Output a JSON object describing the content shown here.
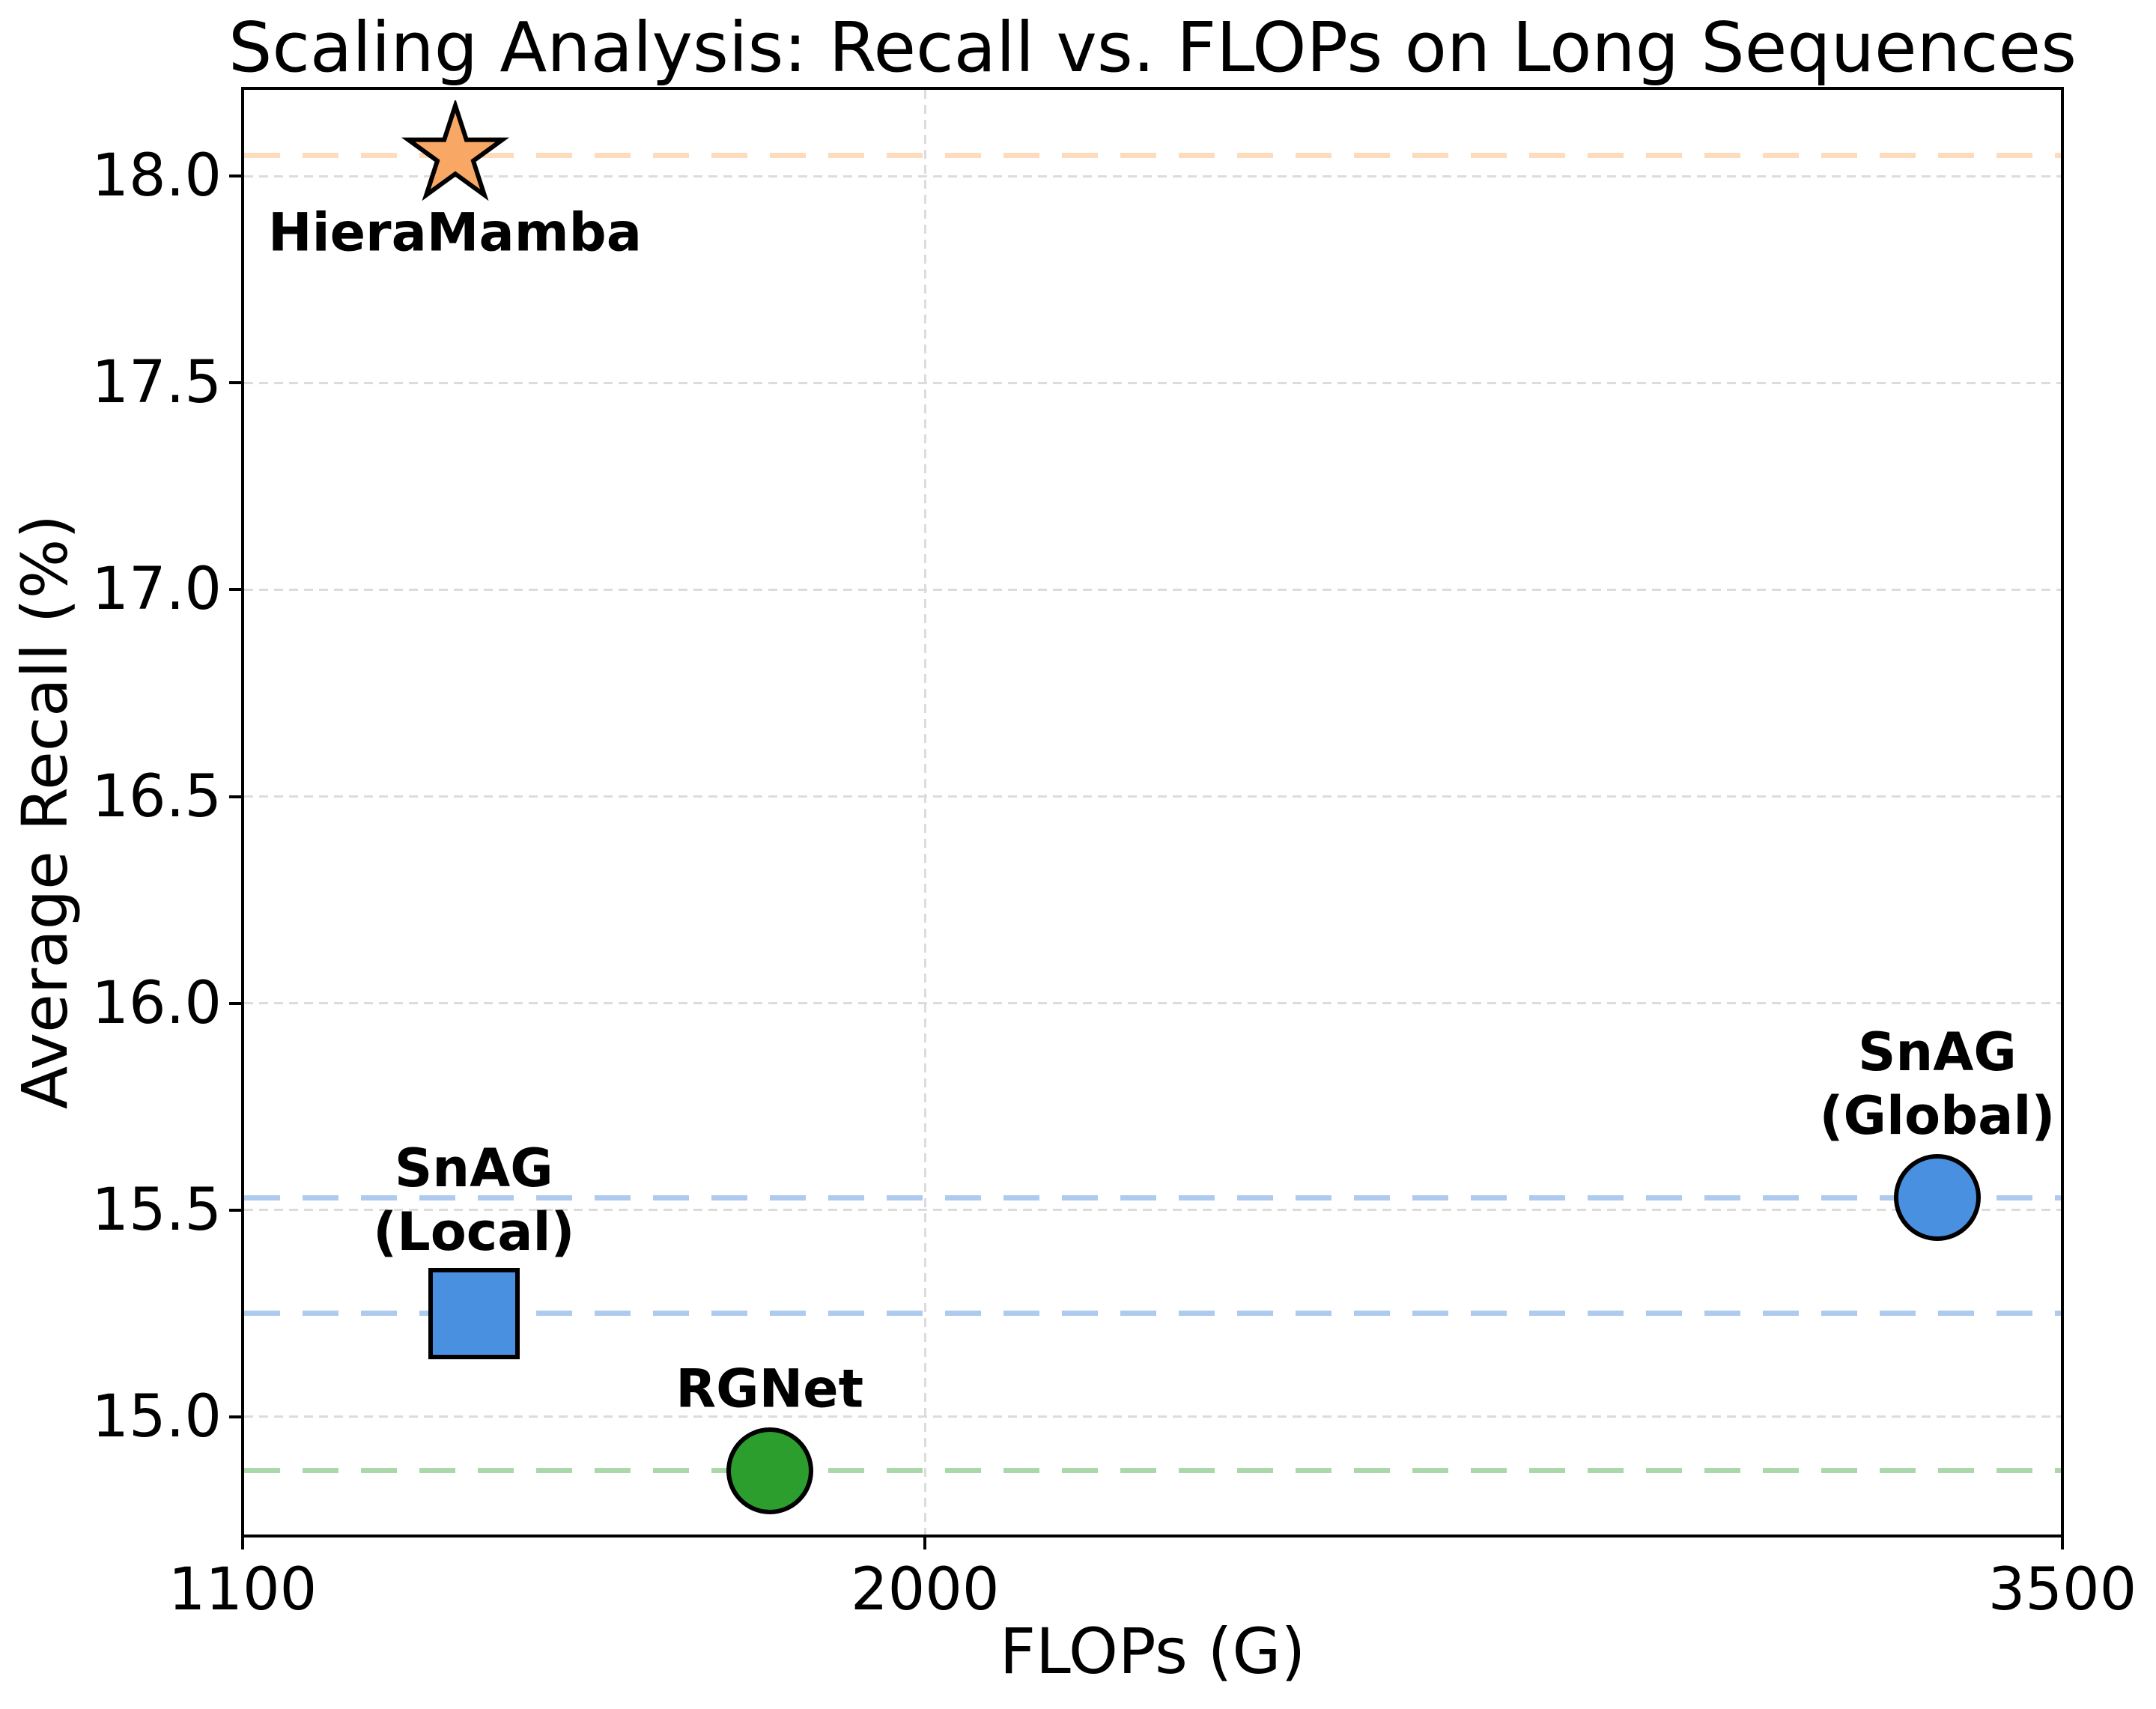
{
  "chart_data": {
    "type": "scatter",
    "title": "Scaling Analysis: Recall vs. FLOPs on Long Sequences",
    "xlabel": "FLOPs (G)",
    "ylabel": "Average Recall (%)",
    "x_scale": "linear",
    "xlim": [
      1100,
      3500
    ],
    "ylim": [
      14.712,
      18.212
    ],
    "xticks": [
      1100,
      2000,
      3500
    ],
    "xtick_labels": [
      "1100",
      "2000",
      "3500"
    ],
    "yticks": [
      15.0,
      15.5,
      16.0,
      16.5,
      17.0,
      17.5,
      18.0
    ],
    "ytick_labels": [
      "15.0",
      "15.5",
      "16.0",
      "16.5",
      "17.0",
      "17.5",
      "18.0"
    ],
    "grid": true,
    "grid_color": "#dcdcdc",
    "spine_color": "#000000",
    "background": "#ffffff",
    "legend": "none",
    "points": [
      {
        "label": "HieraMamba",
        "label_lines": [
          "HieraMamba"
        ],
        "x": 1380,
        "y": 18.05,
        "marker": "star",
        "fill": "#f8a765",
        "edge": "#000000",
        "refline_color": "#fcdcbd",
        "label_placement": "below"
      },
      {
        "label": "SnAG (Local)",
        "label_lines": [
          "SnAG",
          "(Local)"
        ],
        "x": 1405,
        "y": 15.25,
        "marker": "square",
        "fill": "#4a90e0",
        "edge": "#000000",
        "refline_color": "#aecbef",
        "label_placement": "above"
      },
      {
        "label": "RGNet",
        "label_lines": [
          "RGNet"
        ],
        "x": 1795,
        "y": 14.87,
        "marker": "circle",
        "fill": "#2b9e2d",
        "edge": "#000000",
        "refline_color": "#abd8ab",
        "label_placement": "above"
      },
      {
        "label": "SnAG (Global)",
        "label_lines": [
          "SnAG",
          "(Global)"
        ],
        "x": 3335,
        "y": 15.53,
        "marker": "circle",
        "fill": "#4a90e0",
        "edge": "#000000",
        "refline_color": "#aecbef",
        "label_placement": "above"
      }
    ]
  }
}
